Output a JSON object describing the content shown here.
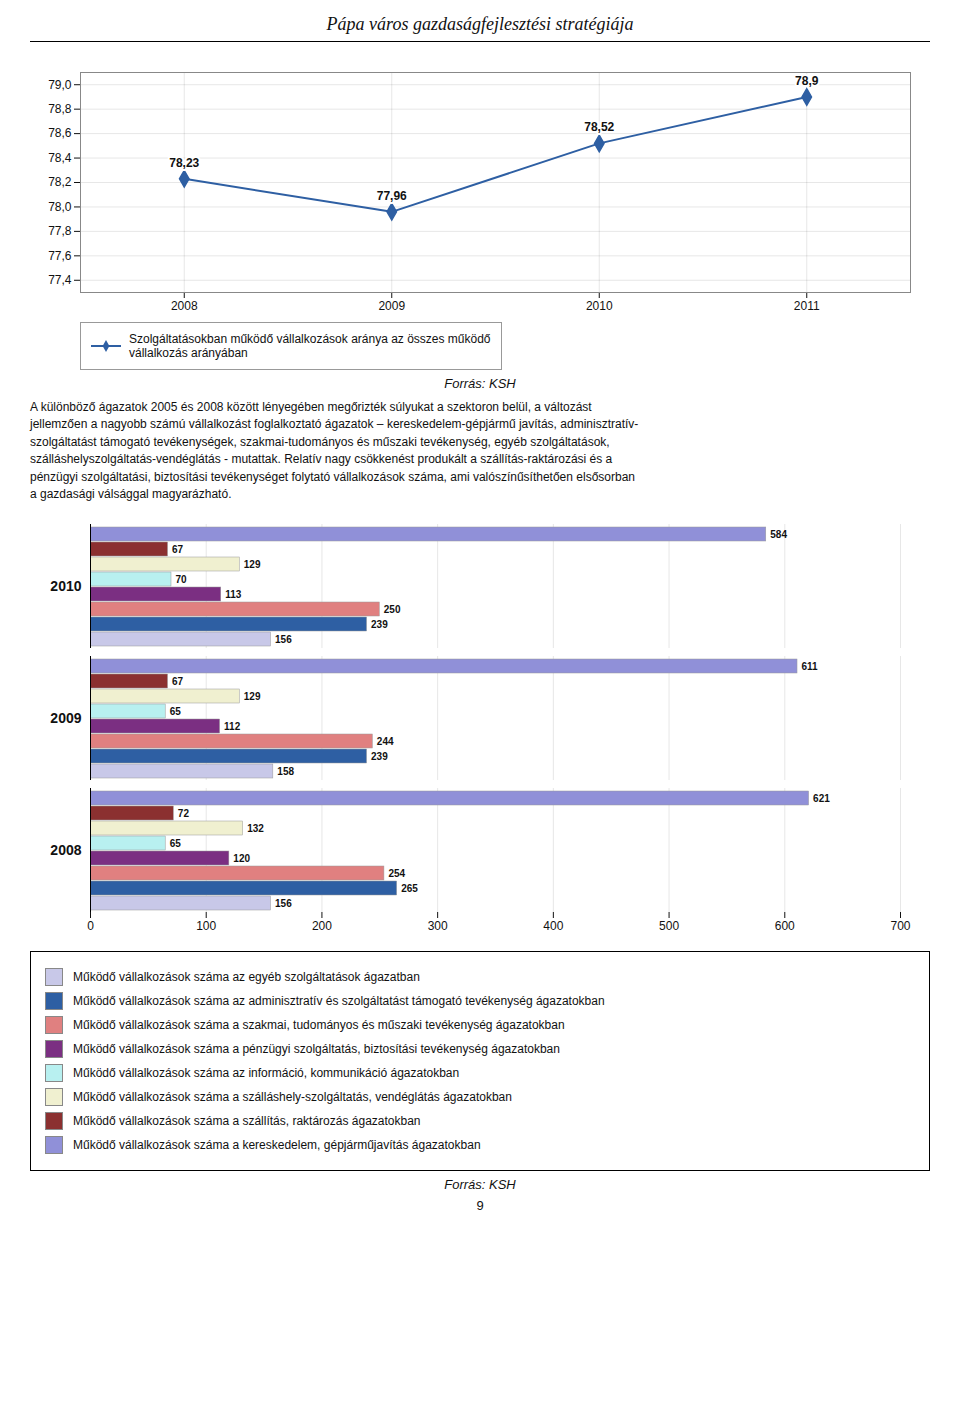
{
  "chart_data": [
    {
      "type": "line",
      "title": "Pápa város gazdaságfejlesztési stratégiája",
      "x": [
        2008,
        2009,
        2010,
        2011
      ],
      "xlim": [
        2007.5,
        2011.5
      ],
      "xticks": [
        2008,
        2009,
        2010,
        2011
      ],
      "ylim": [
        77.3,
        79.1
      ],
      "yticks": [
        {
          "value": 77.4,
          "label": "77,4"
        },
        {
          "value": 77.6,
          "label": "77,6"
        },
        {
          "value": 77.8,
          "label": "77,8"
        },
        {
          "value": 78.0,
          "label": "78,0"
        },
        {
          "value": 78.2,
          "label": "78,2"
        },
        {
          "value": 78.4,
          "label": "78,4"
        },
        {
          "value": 78.6,
          "label": "78,6"
        },
        {
          "value": 78.8,
          "label": "78,8"
        },
        {
          "value": 79.0,
          "label": "79,0"
        }
      ],
      "series": [
        {
          "name": "Szolgáltatásokban működő vállalkozások aránya az összes működő\nvállalkozás arányában",
          "color": "#2e5fa3",
          "marker": "diamond",
          "values": [
            78.23,
            77.96,
            78.52,
            78.9
          ],
          "value_labels": [
            "78,23",
            "77,96",
            "78,52",
            "78,9"
          ]
        }
      ],
      "grid": true,
      "data_labels": true,
      "legend": "bottom",
      "annotations": [
        "Forrás: KSH",
        "A különböző ágazatok 2005 és 2008 között lényegében megőrizték súlyukat a szektoron belül, a változást\njellemzően a nagyobb számú vállalkozást foglalkoztató ágazatok – kereskedelem-gépjármű javítás, adminisztratív-\nszolgáltatást támogató tevékenységek, szakmai-tudományos és műszaki tevékenység, egyéb szolgáltatások,\nszálláshelyszolgáltatás-vendéglátás - mutattak. Relatív nagy csökkenést produkált a szállítás-raktározási és a\npénzügyi szolgáltatási, biztosítási tevékenységet folytató vállalkozások száma, ami valószínűsíthetően elsősorban\na gazdasági válsággal magyarázható."
      ]
    },
    {
      "type": "bar",
      "orientation": "horizontal",
      "categories": [
        "2010",
        "2009",
        "2008"
      ],
      "series": [
        {
          "name": "Működő vállalkozások száma az egyéb szolgáltatások ágazatban",
          "color": "#c8c8e8",
          "values": [
            156,
            158,
            156
          ]
        },
        {
          "name": "Működő vállalkozások száma az adminisztratív és szolgáltatást támogató tevékenység ágazatokban",
          "color": "#2e5fa3",
          "values": [
            239,
            239,
            265
          ]
        },
        {
          "name": "Működő vállalkozások száma a szakmai, tudományos és műszaki tevékenység ágazatokban",
          "color": "#e08080",
          "values": [
            250,
            244,
            254
          ]
        },
        {
          "name": "Működő vállalkozások száma a pénzügyi szolgáltatás, biztosítási tevékenység ágazatokban",
          "color": "#7b2f82",
          "values": [
            113,
            112,
            120
          ]
        },
        {
          "name": "Működő vállalkozások száma az információ, kommunikáció ágazatokban",
          "color": "#b8f0f0",
          "values": [
            70,
            65,
            65
          ]
        },
        {
          "name": "Működő vállalkozások száma a szálláshely-szolgáltatás, vendéglátás ágazatokban",
          "color": "#f0f0d0",
          "values": [
            129,
            129,
            132
          ]
        },
        {
          "name": "Működő vállalkozások száma a szállítás, raktározás ágazatokban",
          "color": "#8b3030",
          "values": [
            67,
            67,
            72
          ]
        },
        {
          "name": "Működő vállalkozások száma a kereskedelem, gépjárműjavítás ágazatokban",
          "color": "#9090d8",
          "values": [
            584,
            611,
            621
          ]
        }
      ],
      "xlim": [
        0,
        700
      ],
      "xticks": [
        0,
        100,
        200,
        300,
        400,
        500,
        600,
        700
      ],
      "grid": true,
      "data_labels": true,
      "legend": "bottom",
      "annotations": [
        "Forrás: KSH",
        "9"
      ]
    }
  ]
}
